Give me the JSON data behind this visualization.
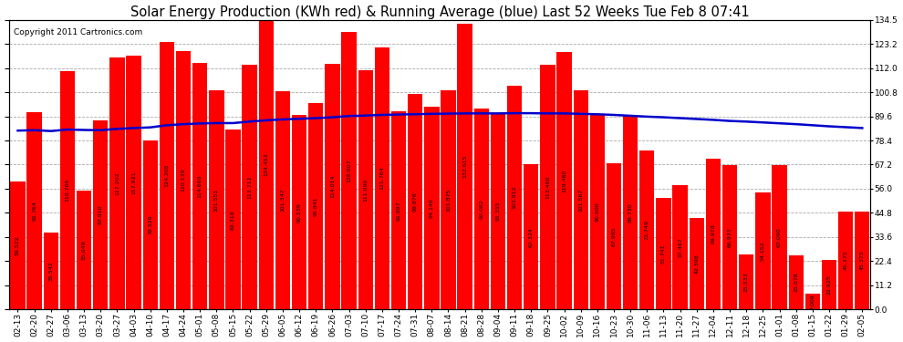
{
  "title": "Solar Energy Production (KWh red) & Running Average (blue) Last 52 Weeks Tue Feb 8 07:41",
  "copyright": "Copyright 2011 Cartronics.com",
  "bar_color": "#ff0000",
  "avg_line_color": "#0000cc",
  "background_color": "#ffffff",
  "grid_color": "#aaaaaa",
  "categories": [
    "02-13",
    "02-20",
    "02-27",
    "03-06",
    "03-13",
    "03-20",
    "03-27",
    "04-03",
    "04-10",
    "04-17",
    "04-24",
    "05-01",
    "05-08",
    "05-15",
    "05-22",
    "05-29",
    "06-05",
    "06-12",
    "06-19",
    "06-26",
    "07-03",
    "07-10",
    "07-17",
    "07-24",
    "07-31",
    "08-07",
    "08-14",
    "08-21",
    "08-28",
    "09-04",
    "09-11",
    "09-18",
    "09-25",
    "10-02",
    "10-09",
    "10-16",
    "10-23",
    "10-30",
    "11-06",
    "11-13",
    "11-20",
    "11-27",
    "12-04",
    "12-11",
    "12-18",
    "12-25",
    "01-01",
    "01-08",
    "01-15",
    "01-22",
    "01-29",
    "02-05"
  ],
  "values": [
    59.522,
    91.764,
    35.542,
    110.706,
    55.049,
    87.91,
    117.202,
    117.921,
    78.526,
    124.205,
    120.139,
    114.6,
    101.551,
    83.318,
    113.712,
    134.453,
    101.347,
    90.239,
    95.841,
    114.014,
    128.907,
    111.096,
    121.764,
    91.897,
    99.876,
    94.146,
    101.875,
    132.615,
    93.082,
    91.355,
    103.912,
    67.324,
    113.46,
    119.46,
    101.567,
    90.9,
    67.985,
    89.73,
    73.749,
    51.741,
    57.467,
    42.598,
    69.978,
    66.933,
    25.533,
    54.152,
    67.09,
    25.078,
    7.009,
    22.925,
    45.375,
    45.375
  ],
  "running_avg": [
    83.0,
    83.2,
    82.8,
    83.5,
    83.3,
    83.2,
    83.8,
    84.2,
    84.5,
    85.5,
    86.0,
    86.3,
    86.5,
    86.5,
    87.2,
    87.8,
    88.2,
    88.5,
    88.8,
    89.2,
    89.8,
    90.0,
    90.3,
    90.5,
    90.6,
    90.8,
    90.9,
    91.0,
    91.0,
    91.0,
    91.1,
    91.1,
    91.0,
    91.0,
    90.8,
    90.6,
    90.3,
    89.9,
    89.5,
    89.2,
    88.8,
    88.4,
    88.0,
    87.5,
    87.2,
    86.8,
    86.4,
    86.0,
    85.5,
    85.0,
    84.6,
    84.2
  ],
  "ylim": [
    0,
    134.5
  ],
  "yticks": [
    0.0,
    11.2,
    22.4,
    33.6,
    44.8,
    56.0,
    67.2,
    78.4,
    89.6,
    100.8,
    112.0,
    123.2,
    134.5
  ],
  "title_fontsize": 10.5,
  "copyright_fontsize": 6.5,
  "tick_fontsize": 6.5,
  "label_fontsize": 4.5
}
